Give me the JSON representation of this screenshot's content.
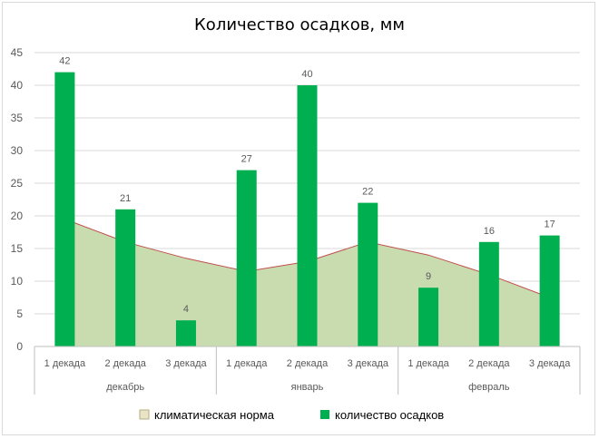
{
  "chart_data": {
    "type": "bar",
    "title": "Количество осадков, мм",
    "ylim": [
      0,
      45
    ],
    "yticks": [
      0,
      5,
      10,
      15,
      20,
      25,
      30,
      35,
      40,
      45
    ],
    "categories": [
      "1 декада",
      "2 декада",
      "3 декада",
      "1 декада",
      "2 декада",
      "3 декада",
      "1 декада",
      "2 декада",
      "3 декада"
    ],
    "groups": [
      {
        "label": "декабрь",
        "span": 3
      },
      {
        "label": "январь",
        "span": 3
      },
      {
        "label": "февраль",
        "span": 3
      }
    ],
    "series": [
      {
        "name": "климатическая норма",
        "type": "area",
        "color": "#c9dcb0",
        "line_color": "#c0504d",
        "values": [
          19.5,
          16,
          13.5,
          11.5,
          13,
          16,
          14,
          11,
          7.5
        ]
      },
      {
        "name": "количество осадков",
        "type": "bar",
        "color": "#00b050",
        "values": [
          42,
          21,
          4,
          27,
          40,
          22,
          9,
          16,
          17
        ]
      }
    ],
    "grid": true,
    "legend": "bottom"
  }
}
